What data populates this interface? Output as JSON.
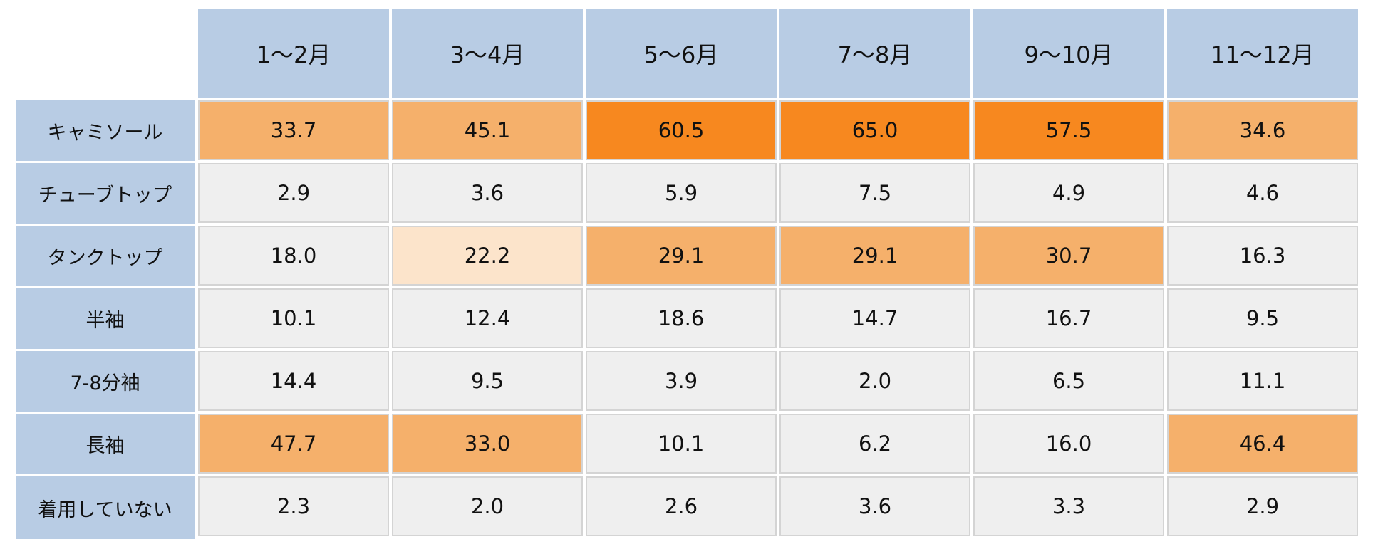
{
  "table": {
    "columns": [
      "1～2月",
      "3～4月",
      "5～6月",
      "7～8月",
      "9～10月",
      "11～12月"
    ],
    "rows": [
      {
        "label": "キャミソール",
        "values": [
          "33.7",
          "45.1",
          "60.5",
          "65.0",
          "57.5",
          "34.6"
        ],
        "fills": [
          "#f5b06b",
          "#f5b06b",
          "#f7881f",
          "#f7881f",
          "#f7881f",
          "#f5b06b"
        ]
      },
      {
        "label": "チューブトップ",
        "values": [
          "2.9",
          "3.6",
          "5.9",
          "7.5",
          "4.9",
          "4.6"
        ],
        "fills": [
          "#efefef",
          "#efefef",
          "#efefef",
          "#efefef",
          "#efefef",
          "#efefef"
        ]
      },
      {
        "label": "タンクトップ",
        "values": [
          "18.0",
          "22.2",
          "29.1",
          "29.1",
          "30.7",
          "16.3"
        ],
        "fills": [
          "#efefef",
          "#fce4cb",
          "#f5b06b",
          "#f5b06b",
          "#f5b06b",
          "#efefef"
        ]
      },
      {
        "label": "半袖",
        "values": [
          "10.1",
          "12.4",
          "18.6",
          "14.7",
          "16.7",
          "9.5"
        ],
        "fills": [
          "#efefef",
          "#efefef",
          "#efefef",
          "#efefef",
          "#efefef",
          "#efefef"
        ]
      },
      {
        "label": "7-8分袖",
        "values": [
          "14.4",
          "9.5",
          "3.9",
          "2.0",
          "6.5",
          "11.1"
        ],
        "fills": [
          "#efefef",
          "#efefef",
          "#efefef",
          "#efefef",
          "#efefef",
          "#efefef"
        ]
      },
      {
        "label": "長袖",
        "values": [
          "47.7",
          "33.0",
          "10.1",
          "6.2",
          "16.0",
          "46.4"
        ],
        "fills": [
          "#f5b06b",
          "#f5b06b",
          "#efefef",
          "#efefef",
          "#efefef",
          "#f5b06b"
        ]
      },
      {
        "label": "着用していない",
        "values": [
          "2.3",
          "2.0",
          "2.6",
          "3.6",
          "3.3",
          "2.9"
        ],
        "fills": [
          "#efefef",
          "#efefef",
          "#efefef",
          "#efefef",
          "#efefef",
          "#efefef"
        ]
      }
    ]
  }
}
